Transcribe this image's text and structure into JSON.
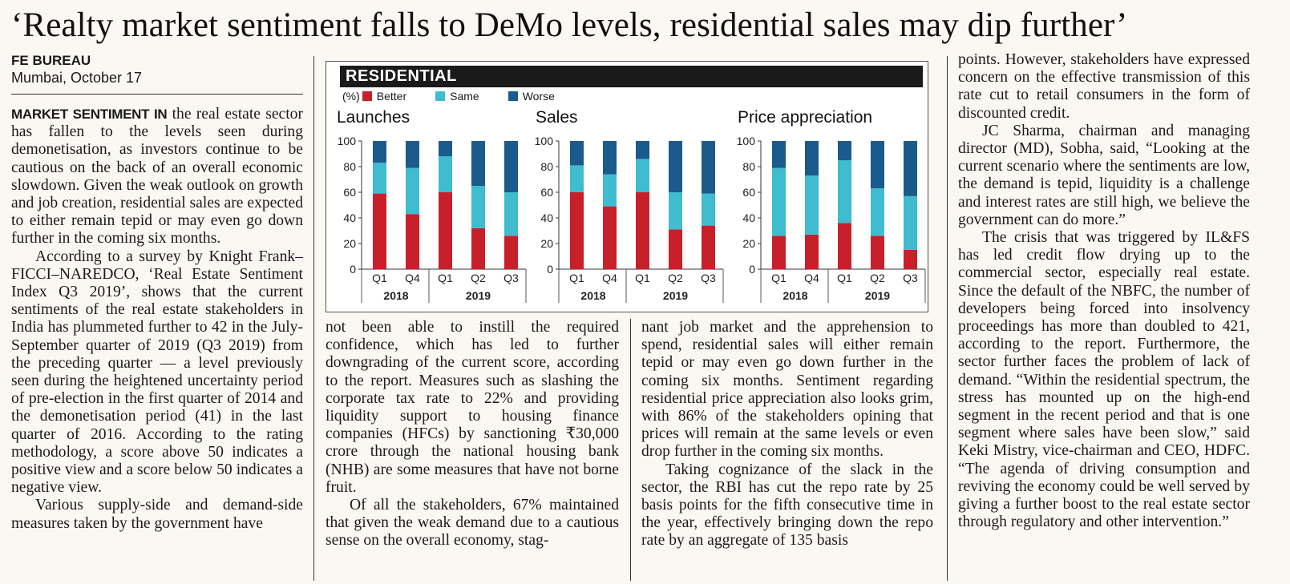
{
  "headline": "‘Realty market sentiment falls to DeMo levels, residential sales may dip further’",
  "byline": {
    "agency": "FE BUREAU",
    "place_date": "Mumbai, October 17"
  },
  "columns": {
    "col1": {
      "lead": "MARKET SENTIMENT IN",
      "p1_rest": " the real estate sector has fallen to the levels seen during demonetisation, as investors continue to be cautious on the back of an overall economic slowdown. Given the weak outlook on growth and job creation, residential sales are expected to either remain tepid or may even go down further in the coming six months.",
      "p2": "According to a survey by Knight Frank–FICCI–NAREDCO, ‘Real Estate Sentiment Index Q3 2019’, shows that the current sentiments of the real estate stakeholders in India has plummeted further to 42 in the July-September quarter of 2019 (Q3 2019) from the preceding quarter — a level previously seen during the heightened uncertainty period of pre-election in the first quarter of 2014 and the demonetisation period (41) in the last quarter of 2016. According to the rating methodology, a score above 50 indicates a positive view and a score below 50 indicates a negative view.",
      "p3": "Various supply-side and demand-side measures taken by the government have"
    },
    "col2": {
      "p1": "not been able to instill the required confidence, which has led to further downgrading of the current score, according to the report. Measures such as slashing the corporate tax rate to 22% and providing liquidity support to housing finance companies (HFCs) by sanctioning ₹30,000 crore through the national housing bank (NHB) are some measures that have not borne fruit.",
      "p2": "Of all the stakeholders, 67% maintained that given the weak demand due to a cautious sense on the overall economy, stag-"
    },
    "col3": {
      "p1": "nant job market and the apprehension to spend, residential sales will either remain tepid or may even go down further in the coming six months. Sentiment regarding residential price appreciation also looks grim, with 86% of the stakeholders opining that prices will remain at the same levels or even drop further in the coming six months.",
      "p2": "Taking cognizance of the slack in the sector, the RBI has cut the repo rate by 25 basis points for the fifth consecutive time in the year, effectively bringing down the repo rate by an aggregate of 135 basis"
    },
    "col4": {
      "p1": "points. However, stakeholders have expressed concern on the effective transmission of this rate cut to retail consumers in the form of discounted credit.",
      "p2": "JC Sharma, chairman and managing director (MD), Sobha, said, “Looking at the current scenario where the sentiments are low, the demand is tepid, liquidity is a challenge and interest rates are still high, we believe the government can do more.”",
      "p3": "The crisis that was triggered by IL&FS has led credit flow drying up to the commercial sector, especially real estate. Since the default of the NBFC, the number of developers being forced into insolvency proceedings has more than doubled to 421, according to the report. Furthermore, the sector further faces the problem of lack of demand. “Within the residential spectrum, the stress has mounted up on the high-end segment in the recent period and that is one segment where sales have been slow,” said Keki Mistry, vice-chairman and CEO, HDFC. “The agenda of driving consumption and reviving the economy could be well served by giving a further boost to the real estate sector through regulatory and other intervention.”"
    }
  },
  "chart_header": "RESIDENTIAL",
  "legend": {
    "unit": "(%)",
    "items": [
      "Better",
      "Same",
      "Worse"
    ]
  },
  "colors": {
    "Better": "#c8202a",
    "Same": "#3fbcd0",
    "Worse": "#1b5a8c"
  },
  "chart_data": [
    {
      "type": "bar",
      "stacked": true,
      "title": "Launches",
      "categories": [
        "Q1",
        "Q4",
        "Q1",
        "Q2",
        "Q3"
      ],
      "groups": [
        {
          "label": "2018",
          "span": 2
        },
        {
          "label": "2019",
          "span": 3
        }
      ],
      "ylim": [
        0,
        100
      ],
      "yticks": [
        0,
        20,
        40,
        60,
        80,
        100
      ],
      "series": [
        {
          "name": "Better",
          "values": [
            59,
            43,
            60,
            32,
            26
          ]
        },
        {
          "name": "Same",
          "values": [
            24,
            36,
            28,
            33,
            34
          ]
        },
        {
          "name": "Worse",
          "values": [
            17,
            21,
            12,
            35,
            40
          ]
        }
      ]
    },
    {
      "type": "bar",
      "stacked": true,
      "title": "Sales",
      "categories": [
        "Q1",
        "Q4",
        "Q1",
        "Q2",
        "Q3"
      ],
      "groups": [
        {
          "label": "2018",
          "span": 2
        },
        {
          "label": "2019",
          "span": 3
        }
      ],
      "ylim": [
        0,
        100
      ],
      "yticks": [
        0,
        20,
        40,
        60,
        80,
        100
      ],
      "series": [
        {
          "name": "Better",
          "values": [
            60,
            49,
            60,
            31,
            34
          ]
        },
        {
          "name": "Same",
          "values": [
            21,
            25,
            26,
            29,
            25
          ]
        },
        {
          "name": "Worse",
          "values": [
            19,
            26,
            14,
            40,
            41
          ]
        }
      ]
    },
    {
      "type": "bar",
      "stacked": true,
      "title": "Price appreciation",
      "categories": [
        "Q1",
        "Q4",
        "Q1",
        "Q2",
        "Q3"
      ],
      "groups": [
        {
          "label": "2018",
          "span": 2
        },
        {
          "label": "2019",
          "span": 3
        }
      ],
      "ylim": [
        0,
        100
      ],
      "yticks": [
        0,
        20,
        40,
        60,
        80,
        100
      ],
      "series": [
        {
          "name": "Better",
          "values": [
            26,
            27,
            36,
            26,
            15
          ]
        },
        {
          "name": "Same",
          "values": [
            53,
            46,
            49,
            37,
            42
          ]
        },
        {
          "name": "Worse",
          "values": [
            21,
            27,
            15,
            37,
            43
          ]
        }
      ]
    }
  ]
}
